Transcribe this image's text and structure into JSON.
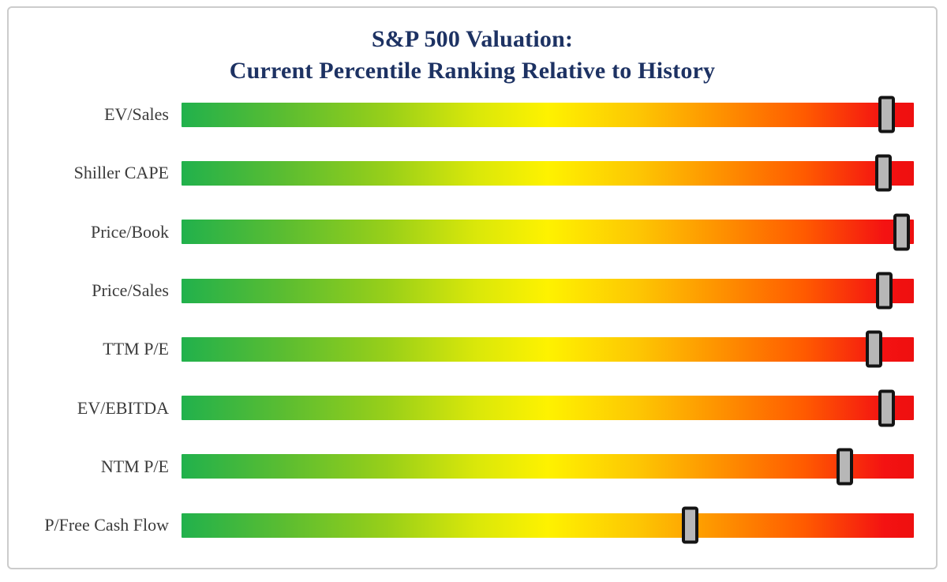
{
  "chart_data": {
    "type": "bar",
    "subtype": "horizontal-gradient-percentile-sliders",
    "title": "S&P 500 Valuation:",
    "subtitle": "Current Percentile Ranking Relative to History",
    "categories": [
      "EV/Sales",
      "Shiller CAPE",
      "Price/Book",
      "Price/Sales",
      "TTM P/E",
      "EV/EBITDA",
      "NTM P/E",
      "P/Free Cash Flow"
    ],
    "series": [
      {
        "name": "Current percentile ranking relative to history",
        "values": [
          96.3,
          95.8,
          98.3,
          96.0,
          94.6,
          96.3,
          90.6,
          69.5
        ]
      }
    ],
    "xlim": [
      0,
      100
    ],
    "grid": false,
    "legend": "none",
    "axis_tick_labels_visible": false,
    "colors": {
      "title_text": "#1d3263",
      "category_label_text": "#3b3b3b",
      "gradient_low": "#21b14c",
      "gradient_mid": "#fef200",
      "gradient_high_orange": "#fe9400",
      "gradient_max": "#ee0f0f",
      "marker_fill": "#b7b7b7",
      "marker_border": "#141414",
      "frame_border": "#cccccc",
      "background": "#ffffff"
    }
  }
}
